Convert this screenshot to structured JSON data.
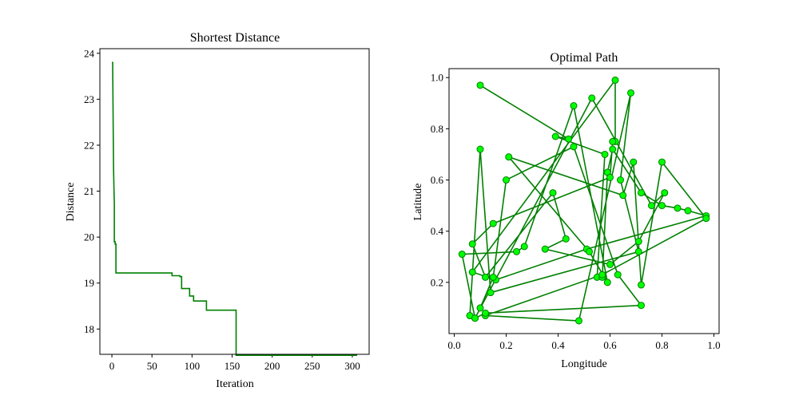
{
  "chart_data": [
    {
      "type": "line",
      "title": "Shortest Distance",
      "xlabel": "Iteration",
      "ylabel": "Distance",
      "xlim": [
        -15,
        321
      ],
      "ylim": [
        17.45,
        24.1
      ],
      "xticks": [
        0,
        50,
        100,
        150,
        200,
        250,
        300
      ],
      "yticks": [
        18,
        19,
        20,
        21,
        22,
        23,
        24
      ],
      "color": "#008000",
      "grid": false,
      "series": [
        {
          "x": [
            0,
            1,
            2,
            3,
            3,
            4,
            4,
            5,
            5,
            6,
            6,
            75,
            75,
            85,
            85,
            87,
            87,
            97,
            97,
            99,
            99,
            102,
            102,
            118,
            118,
            155,
            155,
            306
          ],
          "y": [
            23.8,
            23.8,
            21.5,
            20.7,
            19.9,
            19.9,
            19.85,
            19.85,
            19.22,
            19.22,
            19.22,
            19.22,
            19.16,
            19.16,
            19.14,
            19.14,
            18.88,
            18.88,
            18.72,
            18.72,
            18.72,
            18.72,
            18.61,
            18.61,
            18.41,
            18.41,
            17.43,
            17.43
          ]
        }
      ]
    },
    {
      "type": "line",
      "title": "Optimal Path",
      "xlabel": "Longitude",
      "ylabel": "Latitude",
      "xlim": [
        -0.02,
        1.02
      ],
      "ylim": [
        0.0,
        1.035
      ],
      "xticks": [
        0.0,
        0.2,
        0.4,
        0.6,
        0.8,
        1.0
      ],
      "yticks": [
        0.2,
        0.4,
        0.6,
        0.8,
        1.0
      ],
      "line_color": "#008000",
      "marker_color": "#00ff00",
      "grid": false,
      "series": [
        {
          "x": [
            0.1,
            0.44,
            0.39,
            0.58,
            0.55,
            0.57,
            0.59,
            0.61,
            0.72,
            0.8,
            0.86,
            0.9,
            0.97,
            0.51,
            0.16,
            0.07,
            0.62,
            0.62,
            0.61,
            0.6,
            0.15,
            0.07,
            0.12,
            0.38,
            0.43,
            0.35,
            0.6,
            0.71,
            0.81,
            0.76,
            0.53,
            0.08,
            0.03,
            0.24,
            0.27,
            0.46,
            0.59,
            0.52,
            0.21,
            0.65,
            0.69,
            0.72,
            0.8,
            0.97,
            0.57,
            0.12,
            0.48,
            0.68,
            0.64,
            0.71,
            0.14,
            0.1,
            0.06,
            0.08,
            0.12,
            0.72,
            0.63,
            0.46,
            0.2,
            0.15,
            0.1
          ],
          "y": [
            0.97,
            0.76,
            0.77,
            0.7,
            0.22,
            0.22,
            0.63,
            0.72,
            0.55,
            0.5,
            0.49,
            0.48,
            0.46,
            0.33,
            0.21,
            0.24,
            0.99,
            0.75,
            0.75,
            0.61,
            0.43,
            0.35,
            0.22,
            0.55,
            0.37,
            0.33,
            0.27,
            0.36,
            0.55,
            0.5,
            0.92,
            0.06,
            0.31,
            0.32,
            0.34,
            0.89,
            0.2,
            0.32,
            0.69,
            0.54,
            0.67,
            0.19,
            0.67,
            0.45,
            0.23,
            0.07,
            0.05,
            0.94,
            0.6,
            0.32,
            0.16,
            0.72,
            0.07,
            0.06,
            0.08,
            0.11,
            0.23,
            0.73,
            0.6,
            0.22,
            0.1
          ]
        }
      ]
    }
  ]
}
